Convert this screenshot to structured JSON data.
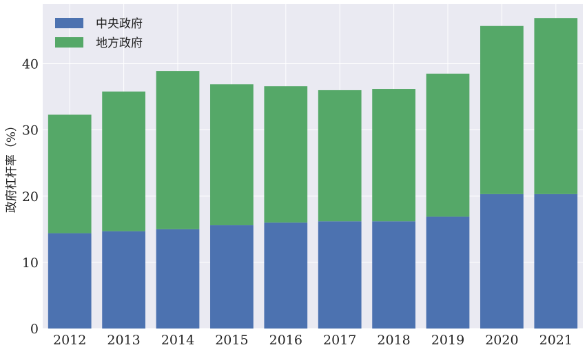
{
  "chart_data": {
    "type": "bar",
    "stacked": true,
    "categories": [
      "2012",
      "2013",
      "2014",
      "2015",
      "2016",
      "2017",
      "2018",
      "2019",
      "2020",
      "2021"
    ],
    "series": [
      {
        "name": "中央政府",
        "color": "#4c72b0",
        "values": [
          14.4,
          14.7,
          15.0,
          15.6,
          16.0,
          16.2,
          16.2,
          16.9,
          20.3,
          20.3
        ]
      },
      {
        "name": "地方政府",
        "color": "#55a868",
        "values": [
          17.9,
          21.1,
          23.9,
          21.3,
          20.6,
          19.8,
          20.0,
          21.6,
          25.4,
          26.6
        ]
      }
    ],
    "title": "",
    "xlabel": "",
    "ylabel": "政府杠杆率（%）",
    "yticks": [
      0,
      10,
      20,
      30,
      40
    ],
    "ylim": [
      0,
      49
    ],
    "grid": true,
    "legend": "top-left",
    "background_color": "#eaeaf2",
    "grid_color": "#ffffff"
  }
}
